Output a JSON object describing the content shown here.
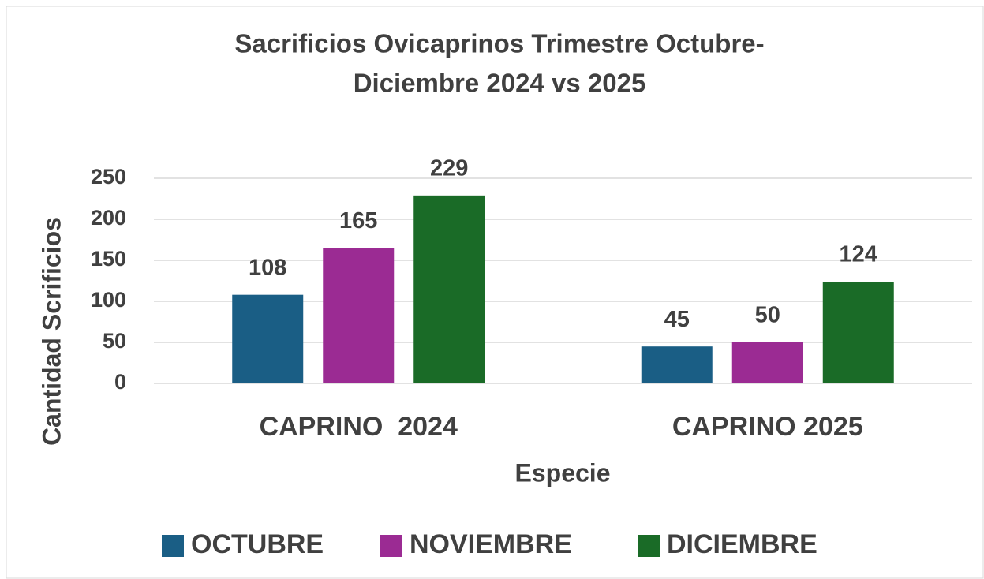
{
  "chart_data": {
    "type": "bar",
    "title": [
      "Sacrificios Ovicaprinos Trimestre Octubre-",
      "Diciembre 2024 vs 2025"
    ],
    "x_label": "Especie",
    "y_label": "Cantidad Scrificios",
    "categories": [
      "CAPRINO  2024",
      "CAPRINO 2025"
    ],
    "series": [
      {
        "name": "OCTUBRE",
        "color": "#1a5e85",
        "values": [
          108,
          45
        ]
      },
      {
        "name": "NOVIEMBRE",
        "color": "#9b2b93",
        "values": [
          165,
          50
        ]
      },
      {
        "name": "DICIEMBRE",
        "color": "#1a6b27",
        "values": [
          229,
          124
        ]
      }
    ],
    "ylim": [
      0,
      250
    ],
    "yticks": [
      0,
      50,
      100,
      150,
      200,
      250
    ],
    "grid": true,
    "legend": "bottom"
  }
}
